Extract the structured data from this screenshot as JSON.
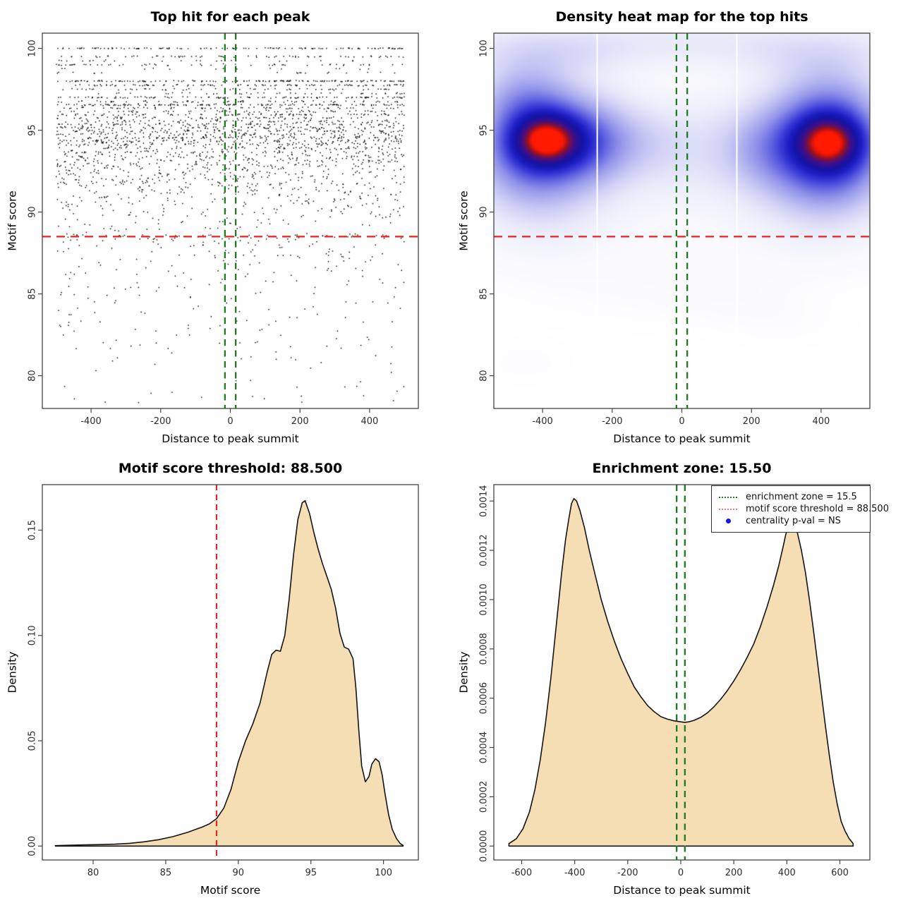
{
  "figure_background": "#ffffff",
  "colors": {
    "threshold_red": "#ee2020",
    "zone_green": "#1e7b1e",
    "legend_red_dotted": "#ee7777",
    "legend_blue_dot": "#1414e6",
    "density_fill_wheat": "#f5deb3",
    "curve_stroke": "#141414",
    "scatter_point": "#000000",
    "axis_line": "#444444",
    "tick_text": "#2b2b2b",
    "heat_white_line": "#ffffff"
  },
  "chart_data": [
    {
      "type": "scatter",
      "title": "Top hit for each peak",
      "xlabel": "Distance to peak summit",
      "ylabel": "Motif score",
      "x_domain": [
        -540,
        540
      ],
      "y_domain": [
        78.0,
        100.93
      ],
      "x_ticks": [
        -400,
        -200,
        0,
        200,
        400
      ],
      "x_tick_labels": [
        "-400",
        "-200",
        "0",
        "200",
        "400"
      ],
      "y_ticks": [
        80,
        85,
        90,
        95,
        100
      ],
      "y_tick_labels": [
        "80",
        "85",
        "90",
        "95",
        "100"
      ],
      "grid": false,
      "threshold_hline_y": 88.5,
      "zone_vlines_x": [
        -15.5,
        15.5
      ],
      "x_data_range": [
        -500,
        500
      ],
      "point_marker": "pixel-dot",
      "seed": 1234,
      "score_bands_score_count_jitter": [
        [
          100.0,
          120,
          0.04
        ],
        [
          99.5,
          65,
          0.06
        ],
        [
          99.25,
          22,
          0.05
        ],
        [
          99.0,
          55,
          0.06
        ],
        [
          98.75,
          14,
          0.05
        ],
        [
          98.5,
          18,
          0.05
        ],
        [
          98.0,
          150,
          0.05
        ],
        [
          97.75,
          95,
          0.06
        ],
        [
          97.5,
          55,
          0.06
        ],
        [
          97.25,
          40,
          0.06
        ],
        [
          97.0,
          110,
          0.06
        ],
        [
          96.75,
          65,
          0.07
        ],
        [
          96.55,
          130,
          0.07
        ],
        [
          96.35,
          70,
          0.07
        ],
        [
          96.15,
          60,
          0.08
        ],
        [
          95.95,
          85,
          0.09
        ],
        [
          95.75,
          70,
          0.09
        ],
        [
          95.55,
          75,
          0.1
        ],
        [
          95.35,
          90,
          0.1
        ],
        [
          95.15,
          95,
          0.11
        ],
        [
          94.95,
          100,
          0.12
        ],
        [
          94.75,
          85,
          0.12
        ],
        [
          94.55,
          110,
          0.12
        ],
        [
          94.35,
          100,
          0.13
        ],
        [
          94.15,
          90,
          0.14
        ],
        [
          93.9,
          85,
          0.15
        ],
        [
          93.65,
          80,
          0.16
        ],
        [
          93.4,
          75,
          0.16
        ],
        [
          93.15,
          70,
          0.17
        ],
        [
          92.9,
          62,
          0.18
        ],
        [
          92.65,
          56,
          0.19
        ],
        [
          92.4,
          52,
          0.2
        ],
        [
          92.15,
          48,
          0.21
        ],
        [
          91.9,
          44,
          0.22
        ],
        [
          91.65,
          40,
          0.23
        ],
        [
          91.4,
          36,
          0.24
        ],
        [
          91.15,
          33,
          0.25
        ],
        [
          90.9,
          30,
          0.27
        ],
        [
          90.65,
          27,
          0.28
        ],
        [
          90.4,
          24,
          0.3
        ],
        [
          90.15,
          21,
          0.32
        ],
        [
          89.9,
          18,
          0.34
        ],
        [
          89.65,
          16,
          0.36
        ],
        [
          89.4,
          14,
          0.38
        ],
        [
          89.15,
          12,
          0.4
        ],
        [
          88.9,
          10,
          0.42
        ],
        [
          88.65,
          9,
          0.44
        ]
      ],
      "low_tail": {
        "count": 310,
        "top_score": 88.6,
        "depth": 10.3,
        "power": 2.0
      }
    },
    {
      "type": "heatmap",
      "title": "Density heat map for the top hits",
      "xlabel": "Distance to peak summit",
      "ylabel": "Motif score",
      "x_domain": [
        -540,
        540
      ],
      "y_domain": [
        78.0,
        100.93
      ],
      "x_ticks": [
        -400,
        -200,
        0,
        200,
        400
      ],
      "x_tick_labels": [
        "-400",
        "-200",
        "0",
        "200",
        "400"
      ],
      "y_ticks": [
        80,
        85,
        90,
        95,
        100
      ],
      "y_tick_labels": [
        "80",
        "85",
        "90",
        "95",
        "100"
      ],
      "grid": false,
      "threshold_hline_y": 88.5,
      "zone_vlines_x": [
        -15.5,
        15.5
      ],
      "white_vlines_x": [
        -243,
        158
      ],
      "density_max": 1.62,
      "hotspots_note": "two high-density cores near (-390,94.4) and (+425,94.3)",
      "gaussians_cx_cy_sx_sy_amp": [
        [
          -390,
          94.4,
          72,
          1.15,
          1.0
        ],
        [
          -385,
          94.9,
          150,
          2.3,
          0.5
        ],
        [
          -430,
          92.6,
          110,
          1.8,
          0.24
        ],
        [
          -455,
          97.1,
          95,
          1.5,
          0.27
        ],
        [
          -255,
          94.2,
          80,
          1.6,
          0.24
        ],
        [
          -120,
          94.4,
          95,
          1.5,
          0.12
        ],
        [
          45,
          94.6,
          120,
          2.2,
          0.1
        ],
        [
          425,
          94.3,
          72,
          1.2,
          0.96
        ],
        [
          405,
          94.3,
          145,
          2.4,
          0.5
        ],
        [
          430,
          92.3,
          100,
          1.7,
          0.24
        ],
        [
          430,
          96.9,
          110,
          1.6,
          0.28
        ],
        [
          240,
          94.0,
          85,
          1.7,
          0.2
        ],
        [
          0,
          100.4,
          600,
          1.1,
          0.16
        ],
        [
          -380,
          99.6,
          170,
          1.0,
          0.1
        ],
        [
          380,
          99.4,
          170,
          1.0,
          0.09
        ],
        [
          0,
          92.4,
          600,
          2.2,
          0.1
        ],
        [
          -400,
          90.4,
          130,
          2.0,
          0.12
        ],
        [
          400,
          90.7,
          130,
          2.0,
          0.12
        ],
        [
          0,
          87.6,
          600,
          1.6,
          0.035
        ],
        [
          -120,
          85.0,
          260,
          1.5,
          0.022
        ],
        [
          160,
          84.8,
          150,
          1.2,
          0.02
        ],
        [
          -450,
          80.8,
          85,
          0.9,
          0.022
        ],
        [
          300,
          83.2,
          130,
          1.0,
          0.018
        ]
      ],
      "palette_stops": [
        [
          0.0,
          "#ffffff"
        ],
        [
          0.05,
          "#f6f6fd"
        ],
        [
          0.11,
          "#e9eafa"
        ],
        [
          0.18,
          "#d2d3f6"
        ],
        [
          0.26,
          "#b2b4f0"
        ],
        [
          0.34,
          "#9193ea"
        ],
        [
          0.43,
          "#6466e2"
        ],
        [
          0.52,
          "#393bd8"
        ],
        [
          0.61,
          "#1d1ec4"
        ],
        [
          0.7,
          "#1414a4"
        ],
        [
          0.77,
          "#2a1196"
        ],
        [
          0.83,
          "#490e80"
        ],
        [
          0.88,
          "#6d1150"
        ],
        [
          0.92,
          "#971222"
        ],
        [
          0.96,
          "#d51111"
        ],
        [
          1.0,
          "#ff1a00"
        ]
      ]
    },
    {
      "type": "area",
      "title": "Motif score threshold: 88.500",
      "xlabel": "Motif score",
      "ylabel": "Density",
      "x_domain": [
        76.5,
        102.4
      ],
      "y_domain": [
        -0.0066,
        0.1716
      ],
      "x_ticks": [
        80,
        85,
        90,
        95,
        100
      ],
      "x_tick_labels": [
        "80",
        "85",
        "90",
        "95",
        "100"
      ],
      "y_ticks": [
        0,
        0.05,
        0.1,
        0.15
      ],
      "y_tick_labels": [
        "0.00",
        "0.05",
        "0.10",
        "0.15"
      ],
      "grid": false,
      "threshold_vline_x": 88.5,
      "curve_points_x_y": [
        [
          77.4,
          0.0002
        ],
        [
          78.5,
          0.0004
        ],
        [
          79.5,
          0.0006
        ],
        [
          80.5,
          0.0007
        ],
        [
          81.5,
          0.0009
        ],
        [
          82.5,
          0.0013
        ],
        [
          83.5,
          0.002
        ],
        [
          84.5,
          0.003
        ],
        [
          85.5,
          0.0045
        ],
        [
          86.5,
          0.0065
        ],
        [
          87.5,
          0.009
        ],
        [
          88.0,
          0.0105
        ],
        [
          88.5,
          0.013
        ],
        [
          89.0,
          0.018
        ],
        [
          89.5,
          0.027
        ],
        [
          90.0,
          0.04
        ],
        [
          90.5,
          0.05
        ],
        [
          91.0,
          0.058
        ],
        [
          91.5,
          0.068
        ],
        [
          92.0,
          0.083
        ],
        [
          92.3,
          0.091
        ],
        [
          92.6,
          0.093
        ],
        [
          92.9,
          0.0925
        ],
        [
          93.2,
          0.1
        ],
        [
          93.5,
          0.117
        ],
        [
          93.8,
          0.138
        ],
        [
          94.1,
          0.155
        ],
        [
          94.4,
          0.163
        ],
        [
          94.6,
          0.164
        ],
        [
          94.9,
          0.158
        ],
        [
          95.2,
          0.149
        ],
        [
          95.5,
          0.141
        ],
        [
          95.8,
          0.134
        ],
        [
          96.1,
          0.128
        ],
        [
          96.4,
          0.122
        ],
        [
          96.7,
          0.113
        ],
        [
          97.0,
          0.101
        ],
        [
          97.3,
          0.0945
        ],
        [
          97.6,
          0.0935
        ],
        [
          97.9,
          0.089
        ],
        [
          98.1,
          0.075
        ],
        [
          98.3,
          0.055
        ],
        [
          98.5,
          0.038
        ],
        [
          98.75,
          0.0305
        ],
        [
          99.0,
          0.033
        ],
        [
          99.2,
          0.039
        ],
        [
          99.45,
          0.0415
        ],
        [
          99.7,
          0.04
        ],
        [
          99.9,
          0.034
        ],
        [
          100.1,
          0.025
        ],
        [
          100.35,
          0.015
        ],
        [
          100.6,
          0.008
        ],
        [
          100.9,
          0.0035
        ],
        [
          101.15,
          0.0012
        ],
        [
          101.35,
          0.0003
        ]
      ]
    },
    {
      "type": "area",
      "title": "Enrichment zone: 15.50",
      "xlabel": "Distance to peak summit",
      "ylabel": "Density",
      "x_domain": [
        -705,
        713
      ],
      "y_domain": [
        -5.64e-05,
        0.0014664
      ],
      "x_ticks": [
        -600,
        -400,
        -200,
        0,
        200,
        400,
        600
      ],
      "x_tick_labels": [
        "-600",
        "-400",
        "-200",
        "0",
        "200",
        "400",
        "600"
      ],
      "y_ticks": [
        0,
        0.0002,
        0.0004,
        0.0006,
        0.0008,
        0.001,
        0.0012,
        0.0014
      ],
      "y_tick_labels": [
        "0.0000",
        "0.0002",
        "0.0004",
        "0.0006",
        "0.0008",
        "0.0010",
        "0.0012",
        "0.0014"
      ],
      "grid": false,
      "zone_vlines_x": [
        -15.5,
        15.5
      ],
      "legend": {
        "position": "topright",
        "items": [
          {
            "swatch": "dotted-line",
            "color_key": "zone_green",
            "label": "enrichment zone = 15.5"
          },
          {
            "swatch": "dotted-line",
            "color_key": "legend_red_dotted",
            "label": "motif score threshold = 88.500"
          },
          {
            "swatch": "dot",
            "color_key": "legend_blue_dot",
            "label": "centrality p-val = NS"
          }
        ]
      },
      "curve_points_x_y": [
        [
          -648,
          1e-05
        ],
        [
          -620,
          3e-05
        ],
        [
          -595,
          7e-05
        ],
        [
          -570,
          0.00014
        ],
        [
          -550,
          0.00023
        ],
        [
          -530,
          0.00035
        ],
        [
          -510,
          0.0005
        ],
        [
          -490,
          0.00068
        ],
        [
          -470,
          0.00089
        ],
        [
          -450,
          0.0011
        ],
        [
          -435,
          0.00124
        ],
        [
          -422,
          0.00133
        ],
        [
          -412,
          0.00139
        ],
        [
          -403,
          0.00141
        ],
        [
          -393,
          0.0014
        ],
        [
          -380,
          0.00136
        ],
        [
          -363,
          0.00129
        ],
        [
          -345,
          0.0012
        ],
        [
          -325,
          0.00111
        ],
        [
          -300,
          0.001
        ],
        [
          -275,
          0.00091
        ],
        [
          -250,
          0.00083
        ],
        [
          -225,
          0.00076
        ],
        [
          -200,
          0.0007
        ],
        [
          -175,
          0.000645
        ],
        [
          -150,
          0.000605
        ],
        [
          -125,
          0.00057
        ],
        [
          -100,
          0.000545
        ],
        [
          -75,
          0.000525
        ],
        [
          -50,
          0.000515
        ],
        [
          -25,
          0.000508
        ],
        [
          0,
          0.000504
        ],
        [
          15,
          0.000502
        ],
        [
          30,
          0.000504
        ],
        [
          50,
          0.00051
        ],
        [
          75,
          0.000522
        ],
        [
          100,
          0.00054
        ],
        [
          125,
          0.000565
        ],
        [
          150,
          0.000595
        ],
        [
          175,
          0.00063
        ],
        [
          200,
          0.00067
        ],
        [
          225,
          0.000715
        ],
        [
          250,
          0.000765
        ],
        [
          275,
          0.00082
        ],
        [
          300,
          0.00089
        ],
        [
          325,
          0.00097
        ],
        [
          350,
          0.00106
        ],
        [
          370,
          0.00114
        ],
        [
          385,
          0.00121
        ],
        [
          395,
          0.00126
        ],
        [
          405,
          0.0013
        ],
        [
          415,
          0.00132
        ],
        [
          425,
          0.00131
        ],
        [
          440,
          0.00127
        ],
        [
          455,
          0.0012
        ],
        [
          470,
          0.00111
        ],
        [
          485,
          0.001
        ],
        [
          500,
          0.00088
        ],
        [
          515,
          0.00075
        ],
        [
          530,
          0.00062
        ],
        [
          545,
          0.00049
        ],
        [
          560,
          0.00037
        ],
        [
          575,
          0.00026
        ],
        [
          590,
          0.00017
        ],
        [
          605,
          0.0001
        ],
        [
          620,
          6e-05
        ],
        [
          635,
          3e-05
        ],
        [
          650,
          1e-05
        ]
      ]
    }
  ]
}
